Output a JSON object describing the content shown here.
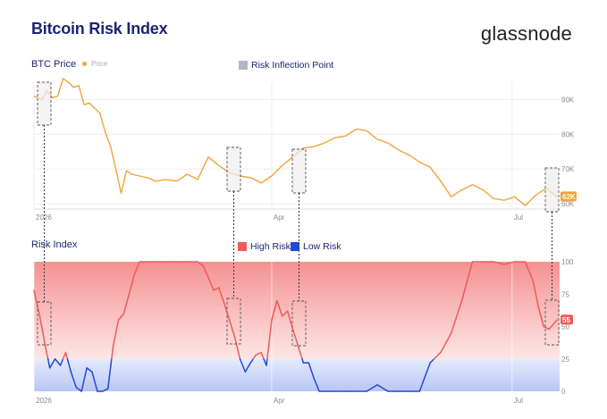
{
  "header": {
    "title": "Bitcoin Risk Index",
    "brand": "glassnode"
  },
  "panels": {
    "price_title": "BTC Price",
    "price_legend": "Price",
    "inflection_legend": "Risk Inflection Point",
    "risk_title": "Risk Index",
    "high_risk_legend": "High Risk",
    "low_risk_legend": "Low Risk"
  },
  "colors": {
    "price_line": "#f2a33a",
    "high_risk": "#f05a5a",
    "low_risk": "#2448d8",
    "title": "#1a2570",
    "marker_fill": "#eeeeee",
    "marker_stroke": "#555555"
  },
  "chart_data": [
    {
      "type": "line",
      "title": "BTC Price",
      "x_ticks": [
        "2026",
        "Apr",
        "Jul"
      ],
      "y_ticks": [
        "60K",
        "70K",
        "80K",
        "90K"
      ],
      "ylim": [
        59000,
        96000
      ],
      "current_label": "62K",
      "series": [
        {
          "name": "Price",
          "x": [
            0,
            3,
            5,
            7,
            9,
            11,
            13,
            15,
            17,
            19,
            21,
            23,
            25,
            27,
            29,
            31,
            33,
            35,
            37,
            40,
            43,
            46,
            50,
            54,
            58,
            62,
            66,
            70,
            74,
            78,
            82,
            86,
            90,
            94,
            98,
            102,
            106,
            110,
            114,
            118,
            122,
            126,
            130,
            134,
            138,
            142,
            146,
            150,
            154,
            158,
            162,
            166,
            170,
            174,
            178,
            182,
            186,
            190,
            194,
            198
          ],
          "values": [
            91000,
            90000,
            92500,
            90500,
            91000,
            96000,
            95000,
            93500,
            94000,
            88500,
            89000,
            87500,
            86000,
            80500,
            76500,
            70000,
            63000,
            69500,
            68500,
            68000,
            67500,
            66500,
            67000,
            66500,
            68500,
            67000,
            73500,
            71000,
            69000,
            68000,
            67500,
            66000,
            68000,
            71000,
            73500,
            76000,
            76500,
            77500,
            79000,
            79500,
            81500,
            81000,
            78500,
            77500,
            75500,
            74000,
            72000,
            70500,
            66500,
            62000,
            64000,
            65500,
            64000,
            61500,
            61000,
            62000,
            59500,
            62500,
            64500,
            62000
          ]
        }
      ]
    },
    {
      "type": "line",
      "title": "Risk Index",
      "x_ticks": [
        "2026",
        "Apr",
        "Jul"
      ],
      "y_ticks": [
        "0",
        "25",
        "50",
        "75",
        "100"
      ],
      "ylim": [
        0,
        100
      ],
      "threshold": 25,
      "current_label": "55",
      "series": [
        {
          "name": "Risk Index",
          "x": [
            0,
            2,
            4,
            6,
            8,
            10,
            12,
            14,
            16,
            18,
            20,
            22,
            24,
            26,
            28,
            30,
            32,
            34,
            36,
            38,
            40,
            44,
            50,
            56,
            62,
            64,
            66,
            68,
            70,
            72,
            74,
            76,
            78,
            80,
            82,
            84,
            86,
            88,
            90,
            92,
            94,
            96,
            98,
            100,
            102,
            104,
            106,
            108,
            110,
            114,
            120,
            126,
            130,
            134,
            136,
            138,
            140,
            142,
            146,
            150,
            154,
            158,
            162,
            166,
            170,
            174,
            178,
            182,
            186,
            189,
            191,
            193,
            195,
            198
          ],
          "values": [
            78,
            60,
            38,
            18,
            25,
            20,
            30,
            15,
            3,
            0,
            18,
            15,
            0,
            0,
            2,
            35,
            55,
            60,
            75,
            90,
            100,
            100,
            100,
            100,
            100,
            97,
            88,
            78,
            80,
            68,
            55,
            42,
            25,
            15,
            22,
            28,
            30,
            20,
            55,
            70,
            58,
            62,
            48,
            35,
            22,
            22,
            10,
            0,
            0,
            0,
            0,
            0,
            5,
            0,
            0,
            0,
            0,
            0,
            0,
            22,
            30,
            45,
            70,
            100,
            100,
            100,
            98,
            100,
            100,
            85,
            65,
            50,
            48,
            55
          ]
        }
      ]
    }
  ]
}
